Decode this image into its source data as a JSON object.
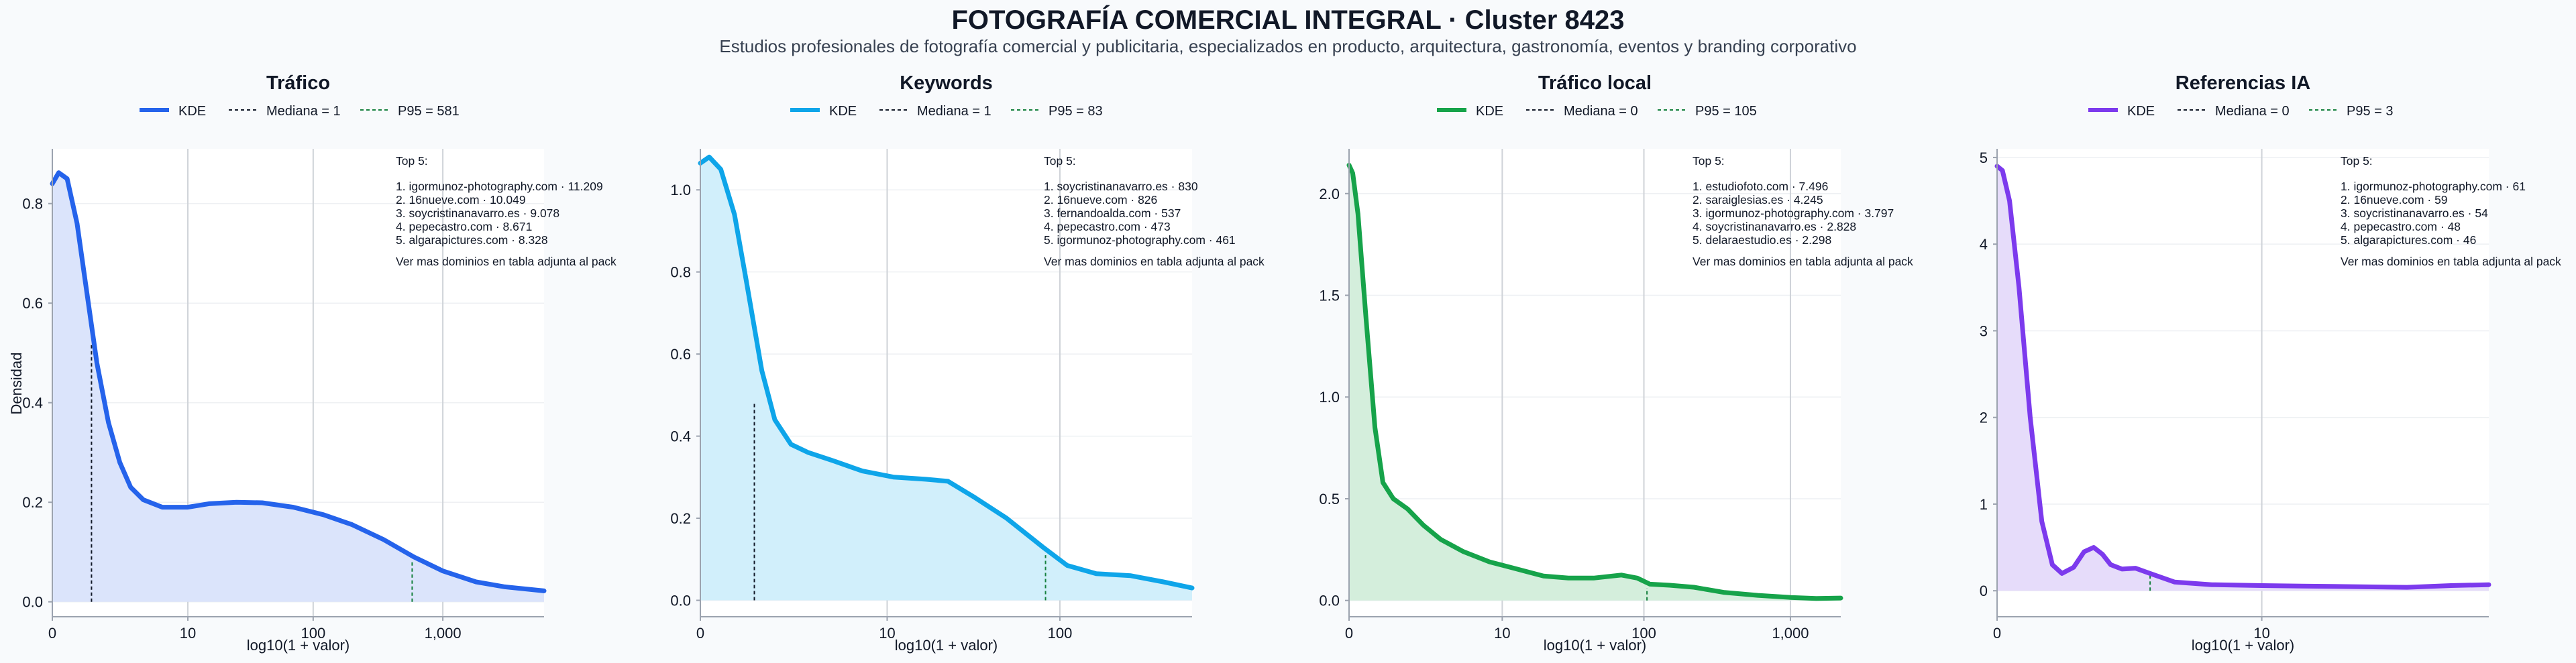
{
  "header": {
    "title": "FOTOGRAFÍA COMERCIAL INTEGRAL · Cluster 8423",
    "subtitle": "Estudios profesionales de fotografía comercial y publicitaria, especializados en producto, arquitectura, gastronomía, eventos y branding corporativo"
  },
  "shared": {
    "ylabel": "Densidad",
    "xlabel": "log10(1 + valor)",
    "top_title": "Top 5:",
    "top_footer": "Ver mas dominios en tabla adjunta al pack"
  },
  "chart_data": [
    {
      "type": "area",
      "title": "Tráfico",
      "color": "#2563eb",
      "fill": "#dbe4fb",
      "xlabel": "log10(1 + valor)",
      "ylabel": "Densidad",
      "xscale": "log10(1+x)",
      "xlim": [
        0,
        6000
      ],
      "ylim": [
        -0.03,
        0.91
      ],
      "xticks": [
        0,
        10,
        100,
        1000
      ],
      "xtick_labels": [
        "0",
        "10",
        "100",
        "1,000"
      ],
      "yticks": [
        0,
        0.2,
        0.4,
        0.6,
        0.8
      ],
      "ytick_labels": [
        "0.0",
        "0.2",
        "0.4",
        "0.6",
        "0.8"
      ],
      "legend": [
        "KDE",
        "Mediana = 1",
        "P95 = 581"
      ],
      "legend_placement": "top-center",
      "median": 1,
      "median_density": 0.52,
      "p95": 581,
      "p95_density": 0.083,
      "kde": [
        [
          0,
          0.84
        ],
        [
          0.12,
          0.862
        ],
        [
          0.3,
          0.85
        ],
        [
          0.55,
          0.76
        ],
        [
          0.8,
          0.64
        ],
        [
          1.2,
          0.48
        ],
        [
          1.7,
          0.36
        ],
        [
          2.3,
          0.28
        ],
        [
          3,
          0.23
        ],
        [
          4,
          0.205
        ],
        [
          6,
          0.19
        ],
        [
          10,
          0.19
        ],
        [
          15,
          0.197
        ],
        [
          25,
          0.2
        ],
        [
          40,
          0.199
        ],
        [
          70,
          0.19
        ],
        [
          120,
          0.175
        ],
        [
          200,
          0.155
        ],
        [
          350,
          0.125
        ],
        [
          600,
          0.09
        ],
        [
          1000,
          0.062
        ],
        [
          1800,
          0.04
        ],
        [
          3000,
          0.03
        ],
        [
          6000,
          0.022
        ]
      ],
      "top5": [
        "1. igormunoz-photography.com · 11.209",
        "2. 16nueve.com · 10.049",
        "3. soycristinanavarro.es · 9.078",
        "4. pepecastro.com · 8.671",
        "5. algarapictures.com · 8.328"
      ]
    },
    {
      "type": "area",
      "title": "Keywords",
      "color": "#0ea5e9",
      "fill": "#d1effb",
      "xlabel": "log10(1 + valor)",
      "ylabel": "Densidad",
      "xscale": "log10(1+x)",
      "xlim": [
        0,
        550
      ],
      "ylim": [
        -0.04,
        1.1
      ],
      "xticks": [
        0,
        10,
        100
      ],
      "xtick_labels": [
        "0",
        "10",
        "100"
      ],
      "yticks": [
        0,
        0.2,
        0.4,
        0.6,
        0.8,
        1.0
      ],
      "ytick_labels": [
        "0.0",
        "0.2",
        "0.4",
        "0.6",
        "0.8",
        "1.0"
      ],
      "legend": [
        "KDE",
        "Mediana = 1",
        "P95 = 83"
      ],
      "legend_placement": "top-center",
      "median": 1,
      "median_density": 0.48,
      "p95": 83,
      "p95_density": 0.11,
      "kde": [
        [
          0,
          1.065
        ],
        [
          0.12,
          1.08
        ],
        [
          0.3,
          1.05
        ],
        [
          0.55,
          0.94
        ],
        [
          0.8,
          0.78
        ],
        [
          1.2,
          0.56
        ],
        [
          1.6,
          0.44
        ],
        [
          2.2,
          0.38
        ],
        [
          3,
          0.36
        ],
        [
          4.5,
          0.34
        ],
        [
          7,
          0.315
        ],
        [
          11,
          0.3
        ],
        [
          17,
          0.295
        ],
        [
          23,
          0.29
        ],
        [
          33,
          0.25
        ],
        [
          50,
          0.2
        ],
        [
          80,
          0.13
        ],
        [
          110,
          0.085
        ],
        [
          160,
          0.065
        ],
        [
          250,
          0.06
        ],
        [
          380,
          0.045
        ],
        [
          550,
          0.03
        ]
      ],
      "top5": [
        "1. soycristinanavarro.es · 830",
        "2. 16nueve.com · 826",
        "3. fernandoalda.com · 537",
        "4. pepecastro.com · 473",
        "5. igormunoz-photography.com · 461"
      ]
    },
    {
      "type": "area",
      "title": "Tráfico local",
      "color": "#16a34a",
      "fill": "#d4eedc",
      "xlabel": "log10(1 + valor)",
      "ylabel": "Densidad",
      "xscale": "log10(1+x)",
      "xlim": [
        0,
        2200
      ],
      "ylim": [
        -0.08,
        2.22
      ],
      "xticks": [
        0,
        10,
        100,
        1000
      ],
      "xtick_labels": [
        "0",
        "10",
        "100",
        "1,000"
      ],
      "yticks": [
        0,
        0.5,
        1.0,
        1.5,
        2.0
      ],
      "ytick_labels": [
        "0.0",
        "0.5",
        "1.0",
        "1.5",
        "2.0"
      ],
      "legend": [
        "KDE",
        "Mediana = 0",
        "P95 = 105"
      ],
      "legend_placement": "top-center",
      "median": 0,
      "median_density": 2.15,
      "p95": 105,
      "p95_density": 0.06,
      "kde": [
        [
          0,
          2.14
        ],
        [
          0.06,
          2.1
        ],
        [
          0.15,
          1.9
        ],
        [
          0.3,
          1.4
        ],
        [
          0.5,
          0.85
        ],
        [
          0.7,
          0.58
        ],
        [
          1,
          0.5
        ],
        [
          1.5,
          0.45
        ],
        [
          2.2,
          0.37
        ],
        [
          3.2,
          0.3
        ],
        [
          5,
          0.24
        ],
        [
          8,
          0.19
        ],
        [
          12,
          0.16
        ],
        [
          20,
          0.12
        ],
        [
          30,
          0.11
        ],
        [
          45,
          0.11
        ],
        [
          70,
          0.125
        ],
        [
          90,
          0.11
        ],
        [
          110,
          0.08
        ],
        [
          150,
          0.075
        ],
        [
          220,
          0.065
        ],
        [
          350,
          0.04
        ],
        [
          600,
          0.025
        ],
        [
          1000,
          0.015
        ],
        [
          1500,
          0.01
        ],
        [
          2200,
          0.012
        ]
      ],
      "top5": [
        "1. estudiofoto.com · 7.496",
        "2. saraiglesias.es · 4.245",
        "3. igormunoz-photography.com · 3.797",
        "4. soycristinanavarro.es · 2.828",
        "5. delaraestudio.es · 2.298"
      ]
    },
    {
      "type": "area",
      "title": "Referencias IA",
      "color": "#7c3aed",
      "fill": "#e6dcfa",
      "xlabel": "log10(1 + valor)",
      "ylabel": "Densidad",
      "xscale": "log10(1+x)",
      "xlim": [
        0,
        85
      ],
      "ylim": [
        -0.3,
        5.1
      ],
      "xticks": [
        0,
        10
      ],
      "xtick_labels": [
        "0",
        "10"
      ],
      "yticks": [
        0,
        1,
        2,
        3,
        4,
        5
      ],
      "ytick_labels": [
        "0",
        "1",
        "2",
        "3",
        "4",
        "5"
      ],
      "legend": [
        "KDE",
        "Mediana = 0",
        "P95 = 3"
      ],
      "legend_placement": "top-center",
      "median": 0,
      "median_density": 4.9,
      "p95": 3,
      "p95_density": 0.2,
      "kde": [
        [
          0,
          4.9
        ],
        [
          0.05,
          4.85
        ],
        [
          0.12,
          4.5
        ],
        [
          0.22,
          3.5
        ],
        [
          0.35,
          2.0
        ],
        [
          0.5,
          0.8
        ],
        [
          0.65,
          0.3
        ],
        [
          0.8,
          0.2
        ],
        [
          1,
          0.27
        ],
        [
          1.2,
          0.45
        ],
        [
          1.4,
          0.5
        ],
        [
          1.6,
          0.42
        ],
        [
          1.8,
          0.3
        ],
        [
          2.1,
          0.25
        ],
        [
          2.5,
          0.26
        ],
        [
          3,
          0.2
        ],
        [
          4,
          0.1
        ],
        [
          6,
          0.07
        ],
        [
          10,
          0.06
        ],
        [
          20,
          0.05
        ],
        [
          40,
          0.04
        ],
        [
          60,
          0.06
        ],
        [
          85,
          0.07
        ]
      ],
      "top5": [
        "1. igormunoz-photography.com · 61",
        "2. 16nueve.com · 59",
        "3. soycristinanavarro.es · 54",
        "4. pepecastro.com · 48",
        "5. algarapictures.com · 46"
      ]
    }
  ]
}
